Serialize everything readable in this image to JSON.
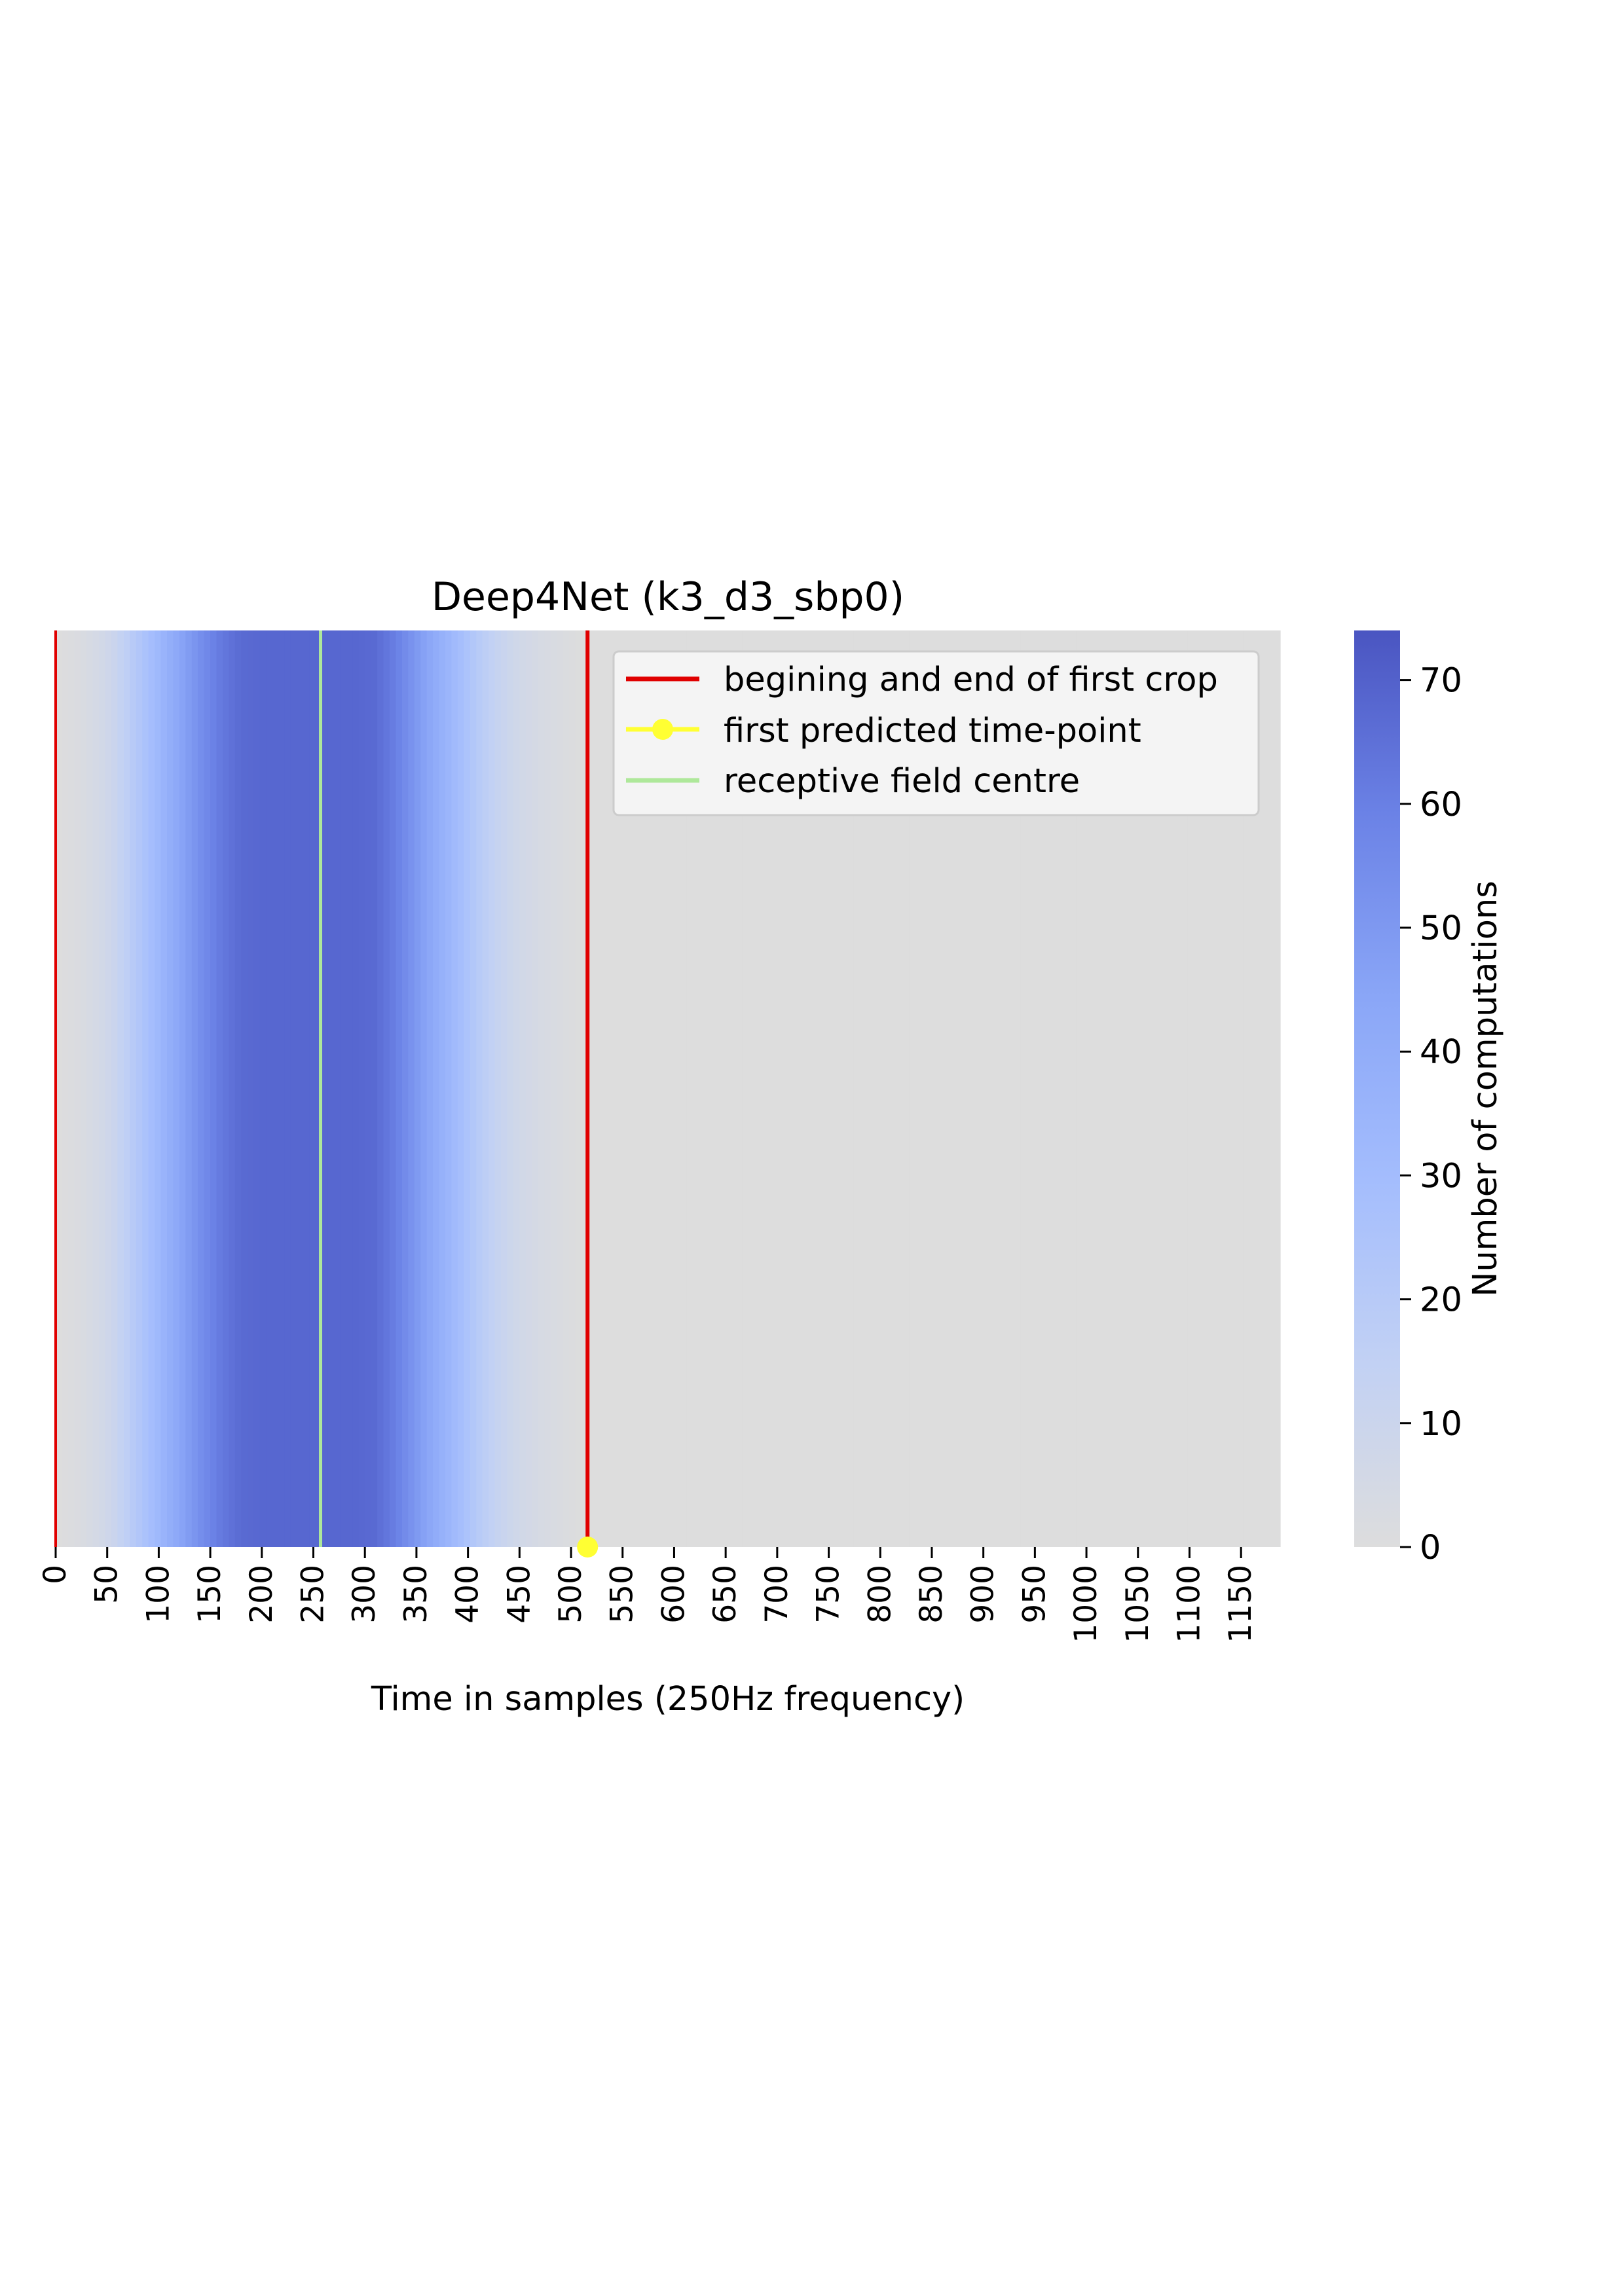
{
  "chart_data": {
    "type": "heatmap",
    "title": "Deep4Net (k3_d3_sbp0)",
    "xlabel": "Time in samples (250Hz frequency)",
    "colorbar_label": "Number of computations",
    "xlim": [
      0,
      1188
    ],
    "x_ticks": [
      0,
      50,
      100,
      150,
      200,
      250,
      300,
      350,
      400,
      450,
      500,
      550,
      600,
      650,
      700,
      750,
      800,
      850,
      900,
      950,
      1000,
      1050,
      1100,
      1150
    ],
    "x_tick_labels": [
      "0",
      "50",
      "100",
      "150",
      "200",
      "250",
      "300",
      "350",
      "400",
      "450",
      "500",
      "550",
      "600",
      "650",
      "700",
      "750",
      "800",
      "850",
      "900",
      "950",
      "1000",
      "1050",
      "1100",
      "1150"
    ],
    "colorbar_range": [
      0,
      74
    ],
    "colorbar_ticks": [
      0,
      10,
      20,
      30,
      40,
      50,
      60,
      70
    ],
    "colorbar_tick_labels": [
      "0",
      "10",
      "20",
      "30",
      "40",
      "50",
      "60",
      "70"
    ],
    "colormap": [
      "#dddddd",
      "#c2d1f4",
      "#a4bdfd",
      "#8aa6f7",
      "#6b82e6",
      "#4a55c1"
    ],
    "computation_profile": [
      [
        0,
        0
      ],
      [
        22,
        2
      ],
      [
        40,
        5
      ],
      [
        56,
        10
      ],
      [
        70,
        17
      ],
      [
        83,
        24
      ],
      [
        100,
        33
      ],
      [
        120,
        44
      ],
      [
        140,
        54
      ],
      [
        160,
        62
      ],
      [
        180,
        67
      ],
      [
        200,
        68
      ],
      [
        230,
        68
      ],
      [
        260,
        68
      ],
      [
        290,
        68
      ],
      [
        310,
        67
      ],
      [
        330,
        60
      ],
      [
        350,
        50
      ],
      [
        370,
        40
      ],
      [
        390,
        30
      ],
      [
        410,
        20
      ],
      [
        430,
        12
      ],
      [
        450,
        7
      ],
      [
        470,
        4
      ],
      [
        490,
        2
      ],
      [
        510,
        0
      ],
      [
        1188,
        0
      ]
    ],
    "background_value": 0,
    "lines": [
      {
        "name": "begining and end of first crop",
        "color": "#e00000",
        "x": [
          0,
          516
        ]
      },
      {
        "name": "first predicted time-point",
        "color": "#ffff33",
        "x": [
          516
        ],
        "marker": "circle",
        "at": "bottom"
      },
      {
        "name": "receptive field centre",
        "color": "#aee89a",
        "x": [
          257
        ]
      }
    ],
    "legend_position": "upper-right",
    "grid": false
  }
}
